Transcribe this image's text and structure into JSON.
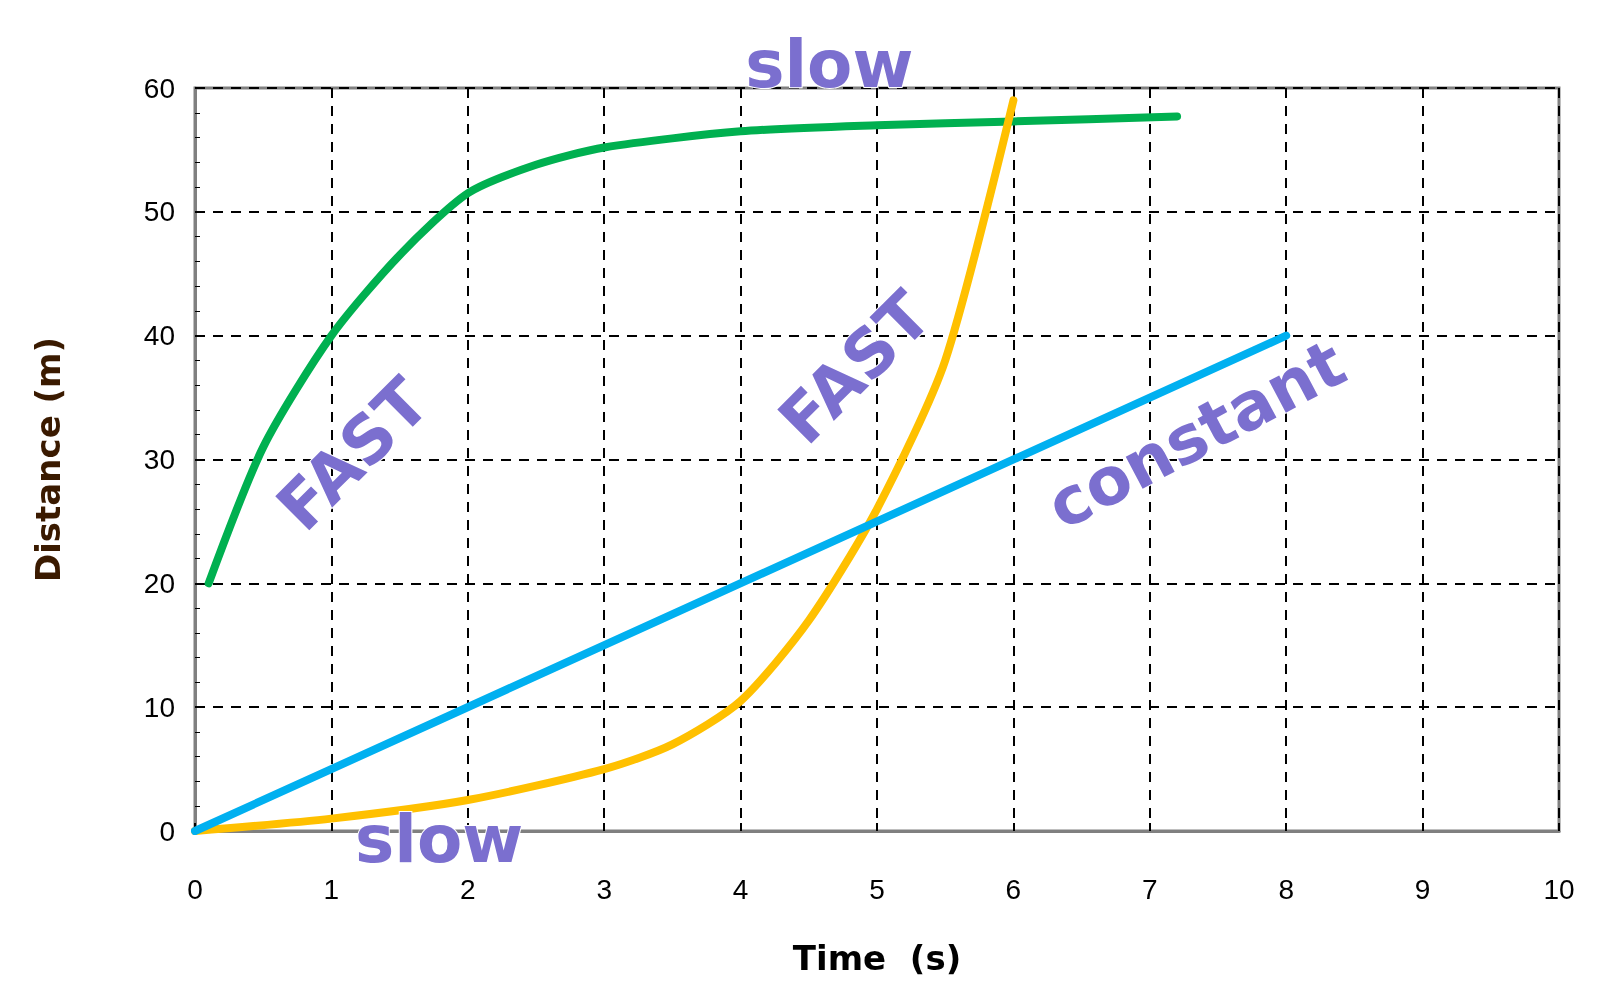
{
  "chart_data": {
    "type": "line",
    "xlabel": "Time  (s)",
    "ylabel": "Distance (m)",
    "xlim": [
      0,
      10
    ],
    "xticks": [
      0,
      1,
      2,
      3,
      4,
      5,
      6,
      7,
      8,
      9,
      10
    ],
    "ylim": [
      0,
      60
    ],
    "yticks": [
      0,
      10,
      20,
      30,
      40,
      50,
      60
    ],
    "grid": true,
    "marker": "none",
    "line_style": "solid",
    "series": [
      {
        "color": "#00b050",
        "x": [
          0.1,
          0.5,
          1,
          1.5,
          2,
          2.5,
          3,
          4,
          5,
          6,
          7.2
        ],
        "values": [
          20,
          31,
          40,
          46.5,
          51.5,
          53.8,
          55.2,
          56.5,
          57,
          57.3,
          57.7
        ]
      },
      {
        "color": "#ffc000",
        "x": [
          0,
          1,
          2,
          3,
          3.5,
          4,
          4.5,
          5,
          5.5,
          6
        ],
        "values": [
          0,
          1,
          2.5,
          5,
          7,
          10.5,
          17,
          26,
          38,
          59
        ]
      },
      {
        "color": "#00b0f0",
        "x": [
          0,
          8
        ],
        "values": [
          0,
          40
        ]
      }
    ],
    "annotations": [
      "FAST",
      "slow",
      "FAST",
      "slow",
      "constant"
    ]
  }
}
